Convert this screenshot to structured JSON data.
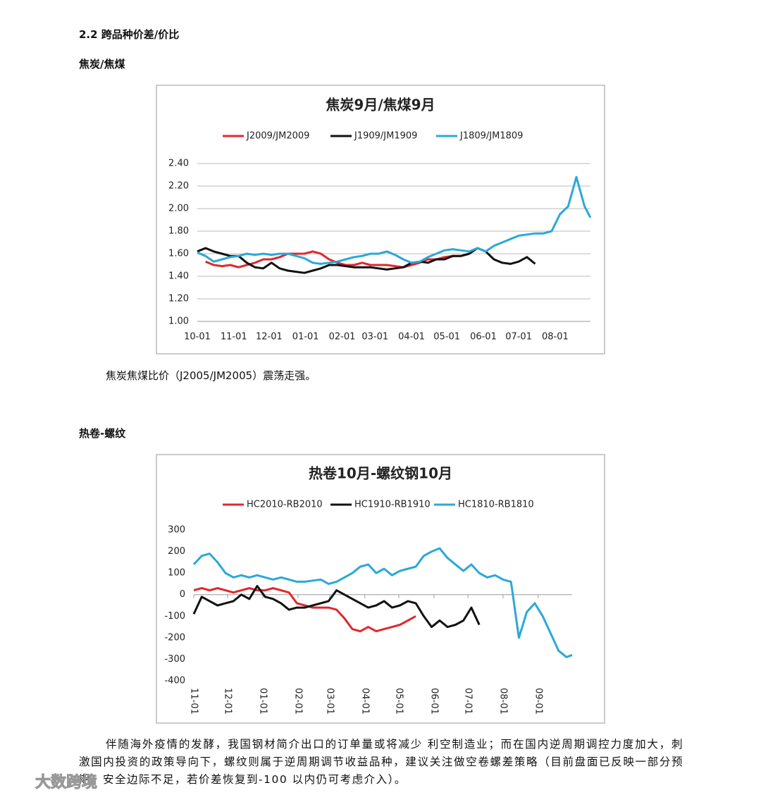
{
  "heading": "2.2 跨品种价差/价比",
  "subheading_1": "焦炭/焦煤",
  "caption_1": "焦炭焦煤比价（J2005/JM2005）震荡走强。",
  "subheading_2": "热卷-螺纹",
  "paragraph_2": "伴随海外疫情的发酵，我国钢材简介出口的订单量或将减少 利空制造业；而在国内逆周期调控力度加大，刺激国内投资的政策导向下，螺纹则属于逆周期调节收益品种，建议关注做空卷螺差策略（目前盘面已反映一部分预期，安全边际不足，若价差恢复到-100 以内仍可考虑介入）。",
  "watermark": "大数跨境",
  "chart_data": [
    {
      "type": "line",
      "title": "焦炭9月/焦煤9月",
      "grid": true,
      "legend": "top",
      "x": [
        0,
        7,
        14,
        21,
        28,
        35,
        42,
        49,
        56,
        63,
        70,
        77,
        84,
        91,
        98,
        105,
        112,
        119,
        126,
        133,
        140,
        147,
        154,
        161,
        168,
        175,
        182,
        189,
        196,
        203,
        210,
        217,
        224,
        231,
        238,
        245,
        252,
        259,
        266,
        273,
        280,
        287,
        294,
        301,
        308,
        315,
        322,
        329,
        334
      ],
      "xlim": [
        0,
        334
      ],
      "xticks": [
        {
          "value": 0,
          "label": "10-01"
        },
        {
          "value": 31,
          "label": "11-01"
        },
        {
          "value": 61,
          "label": "12-01"
        },
        {
          "value": 92,
          "label": "01-01"
        },
        {
          "value": 123,
          "label": "02-01"
        },
        {
          "value": 151,
          "label": "03-01"
        },
        {
          "value": 182,
          "label": "04-01"
        },
        {
          "value": 212,
          "label": "05-01"
        },
        {
          "value": 243,
          "label": "06-01"
        },
        {
          "value": 273,
          "label": "07-01"
        },
        {
          "value": 304,
          "label": "08-01"
        }
      ],
      "ylim": [
        1.0,
        2.4
      ],
      "yticks": [
        {
          "value": 1.0,
          "label": "1.00"
        },
        {
          "value": 1.2,
          "label": "1.20"
        },
        {
          "value": 1.4,
          "label": "1.40"
        },
        {
          "value": 1.6,
          "label": "1.60"
        },
        {
          "value": 1.8,
          "label": "1.80"
        },
        {
          "value": 2.0,
          "label": "2.00"
        },
        {
          "value": 2.2,
          "label": "2.20"
        },
        {
          "value": 2.4,
          "label": "2.40"
        }
      ],
      "series": [
        {
          "name": "J2009/JM2009",
          "color": "#e0282e",
          "values": [
            null,
            1.53,
            1.5,
            1.49,
            1.5,
            1.48,
            1.5,
            1.52,
            1.55,
            1.55,
            1.57,
            1.6,
            1.6,
            1.6,
            1.62,
            1.6,
            1.55,
            1.52,
            1.5,
            1.5,
            1.52,
            1.5,
            1.5,
            1.5,
            1.49,
            1.48,
            1.5,
            1.52,
            1.55,
            1.55,
            1.57,
            1.58,
            1.58,
            1.6,
            null,
            null,
            null,
            null,
            null,
            null,
            null,
            null,
            null,
            null,
            null,
            null,
            null,
            null,
            null
          ]
        },
        {
          "name": "J1909/JM1909",
          "color": "#111111",
          "values": [
            1.62,
            1.65,
            1.62,
            1.6,
            1.58,
            1.58,
            1.52,
            1.48,
            1.47,
            1.52,
            1.47,
            1.45,
            1.44,
            1.43,
            1.45,
            1.47,
            1.5,
            1.5,
            1.49,
            1.48,
            1.48,
            1.48,
            1.47,
            1.46,
            1.47,
            1.48,
            1.52,
            1.53,
            1.52,
            1.55,
            1.55,
            1.58,
            1.58,
            1.6,
            1.65,
            1.62,
            1.55,
            1.52,
            1.51,
            1.53,
            1.57,
            1.51,
            null,
            null,
            null,
            null,
            null,
            null,
            null
          ]
        },
        {
          "name": "J1809/JM1809",
          "color": "#2ba8d8",
          "values": [
            1.61,
            1.58,
            1.53,
            1.55,
            1.57,
            1.58,
            1.6,
            1.59,
            1.6,
            1.59,
            1.6,
            1.6,
            1.58,
            1.56,
            1.52,
            1.51,
            1.52,
            1.53,
            1.55,
            1.57,
            1.58,
            1.6,
            1.6,
            1.62,
            1.59,
            1.55,
            1.52,
            1.53,
            1.57,
            1.6,
            1.63,
            1.64,
            1.63,
            1.62,
            1.65,
            1.62,
            1.67,
            1.7,
            1.73,
            1.76,
            1.77,
            1.78,
            1.78,
            1.8,
            1.95,
            2.02,
            2.28,
            2.02,
            1.92
          ]
        }
      ]
    },
    {
      "type": "line",
      "title": "热卷10月-螺纹钢10月",
      "grid": false,
      "legend": "top",
      "x": [
        0,
        7,
        14,
        21,
        28,
        35,
        42,
        49,
        56,
        63,
        70,
        77,
        84,
        91,
        98,
        105,
        112,
        119,
        126,
        133,
        140,
        147,
        154,
        161,
        168,
        175,
        182,
        189,
        196,
        203,
        210,
        217,
        224,
        231,
        238,
        245,
        252,
        259,
        266,
        273,
        280,
        287,
        294,
        301,
        308,
        315,
        322,
        329,
        334
      ],
      "xlim": [
        0,
        334
      ],
      "xticks": [
        {
          "value": 0,
          "label": "11-01"
        },
        {
          "value": 30,
          "label": "12-01"
        },
        {
          "value": 61,
          "label": "01-01"
        },
        {
          "value": 92,
          "label": "02-01"
        },
        {
          "value": 120,
          "label": "03-01"
        },
        {
          "value": 151,
          "label": "04-01"
        },
        {
          "value": 181,
          "label": "05-01"
        },
        {
          "value": 212,
          "label": "06-01"
        },
        {
          "value": 242,
          "label": "07-01"
        },
        {
          "value": 273,
          "label": "08-01"
        },
        {
          "value": 304,
          "label": "09-01"
        }
      ],
      "ylim": [
        -400,
        300
      ],
      "yticks": [
        -400,
        -300,
        -200,
        -100,
        0,
        100,
        200,
        300
      ],
      "series": [
        {
          "name": "HC2010-RB2010",
          "color": "#e0282e",
          "values": [
            20,
            30,
            20,
            30,
            20,
            10,
            20,
            30,
            20,
            20,
            30,
            20,
            10,
            -40,
            -50,
            -60,
            -60,
            -60,
            -70,
            -110,
            -160,
            -170,
            -150,
            -170,
            -160,
            -150,
            -140,
            -120,
            -100,
            null,
            null,
            null,
            null,
            null,
            null,
            null,
            null,
            null,
            null,
            null,
            null,
            null,
            null,
            null,
            null,
            null,
            null,
            null,
            null
          ]
        },
        {
          "name": "HC1910-RB1910",
          "color": "#111111",
          "values": [
            -90,
            -10,
            -30,
            -50,
            -40,
            -30,
            0,
            -20,
            40,
            -10,
            -20,
            -40,
            -70,
            -60,
            -60,
            -50,
            -40,
            -30,
            20,
            0,
            -20,
            -40,
            -60,
            -50,
            -30,
            -60,
            -50,
            -30,
            -40,
            -100,
            -150,
            -120,
            -150,
            -140,
            -120,
            -60,
            -140,
            null,
            null,
            null,
            null,
            null,
            null,
            null,
            null,
            null,
            null,
            null,
            null
          ]
        },
        {
          "name": "HC1810-RB1810",
          "color": "#2ba8d8",
          "values": [
            140,
            180,
            190,
            150,
            100,
            80,
            90,
            80,
            90,
            80,
            70,
            80,
            70,
            60,
            60,
            65,
            70,
            50,
            60,
            80,
            100,
            130,
            140,
            100,
            120,
            90,
            110,
            120,
            130,
            180,
            200,
            215,
            170,
            140,
            110,
            140,
            100,
            80,
            90,
            70,
            60,
            -200,
            -80,
            -40,
            -100,
            -180,
            -260,
            -290,
            -280
          ]
        }
      ]
    }
  ]
}
